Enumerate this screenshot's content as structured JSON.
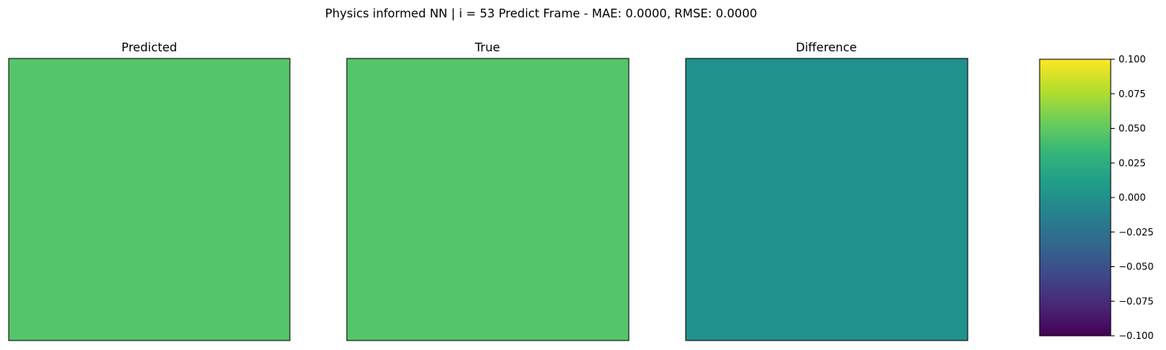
{
  "figure": {
    "suptitle": "Physics informed NN | i = 53 Predict Frame - MAE: 0.0000, RMSE: 0.0000"
  },
  "chart_data": [
    {
      "type": "heatmap",
      "title": "Predicted",
      "fill_value": 0.053,
      "fill_color": "#54c56a",
      "xticks": [],
      "yticks": []
    },
    {
      "type": "heatmap",
      "title": "True",
      "fill_value": 0.053,
      "fill_color": "#54c56a",
      "xticks": [],
      "yticks": []
    },
    {
      "type": "heatmap",
      "title": "Difference",
      "fill_value": 0.0,
      "fill_color": "#21918c",
      "xticks": [],
      "yticks": []
    }
  ],
  "colorbar": {
    "colormap": "viridis",
    "vmin": -0.1,
    "vmax": 0.1,
    "ticks": [
      0.1,
      0.075,
      0.05,
      0.025,
      0.0,
      -0.025,
      -0.05,
      -0.075,
      -0.1
    ],
    "tick_labels": [
      "0.100",
      "0.075",
      "0.050",
      "0.025",
      "0.000",
      "−0.025",
      "−0.050",
      "−0.075",
      "−0.100"
    ],
    "stops": [
      "#440154",
      "#482878",
      "#3e4989",
      "#31688e",
      "#26828e",
      "#1f9e89",
      "#35b779",
      "#6ece58",
      "#b5de2b",
      "#fde725"
    ]
  }
}
